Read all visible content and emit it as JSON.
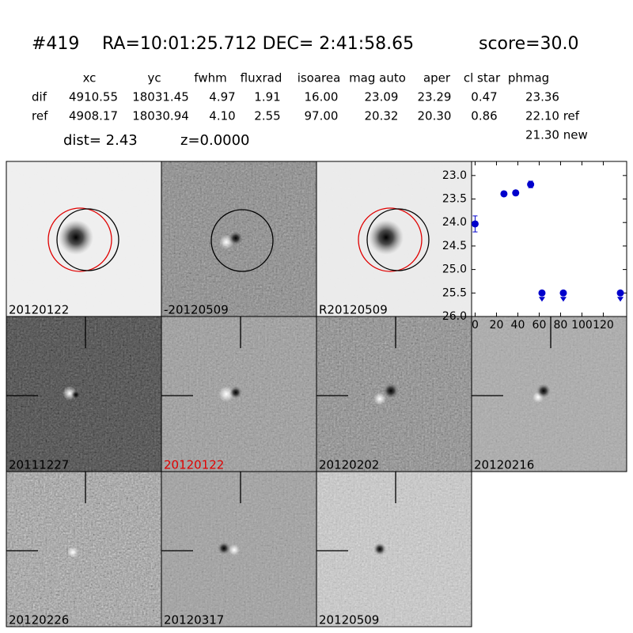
{
  "header": {
    "id": "#419",
    "coords": "RA=10:01:25.712 DEC= 2:41:58.65",
    "score": "score=30.0"
  },
  "table": {
    "columns": [
      "xc",
      "yc",
      "fwhm",
      "fluxrad",
      "isoarea",
      "mag auto",
      "aper",
      "cl star",
      "phmag"
    ],
    "rows": [
      [
        "dif",
        "4910.55",
        "18031.45",
        "4.97",
        "1.91",
        "16.00",
        "23.09",
        "23.29",
        "0.47",
        "23.36"
      ],
      [
        "ref",
        "4908.17",
        "18030.94",
        "4.10",
        "2.55",
        "97.00",
        "20.32",
        "20.30",
        "0.86",
        "22.10 ref"
      ]
    ],
    "extra": "21.30 new"
  },
  "dist": "dist=  2.43",
  "z": "z=0.0000",
  "stamps": [
    {
      "label": "20120122"
    },
    {
      "label": "-20120509"
    },
    {
      "label": "R20120509"
    },
    {
      "label": "20111227"
    },
    {
      "label": "20120122"
    },
    {
      "label": "20120202"
    },
    {
      "label": "20120216"
    },
    {
      "label": "20120226"
    },
    {
      "label": "20120317"
    },
    {
      "label": "20120509"
    }
  ],
  "plot": {
    "type": "scatter",
    "color": "#0000cc",
    "invert_y": true,
    "xlim": [
      -3.3,
      141.9
    ],
    "ylim": [
      22.7,
      26.0
    ],
    "xticks": [
      0,
      20,
      40,
      60,
      80,
      100,
      120
    ],
    "yticks": [
      {
        "value": 23,
        "label": "23.0"
      },
      {
        "value": 23.5,
        "label": "23.5"
      },
      {
        "value": 24,
        "label": "24.0"
      },
      {
        "value": 24.5,
        "label": "24.5"
      },
      {
        "value": 25,
        "label": "25.0"
      },
      {
        "value": 25.5,
        "label": "25.5"
      },
      {
        "value": 26,
        "label": "26.0"
      }
    ],
    "points": {
      "x": [
        0,
        27,
        38,
        52
      ],
      "values": [
        24.03,
        23.39,
        23.37,
        23.19
      ],
      "errors": [
        0.17,
        0.05,
        0.05,
        0.07
      ]
    },
    "limits": {
      "x": [
        62.6,
        82.6,
        136
      ],
      "values": [
        25.5,
        25.5,
        25.5
      ]
    }
  }
}
